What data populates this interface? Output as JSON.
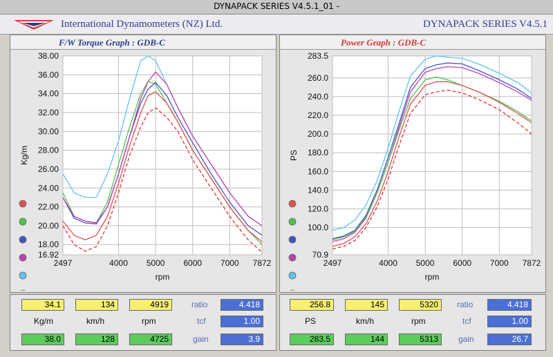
{
  "window": {
    "title": "DYNAPACK SERIES V4.5.1_01  -"
  },
  "header": {
    "company": "International Dynamometers (NZ) Ltd.",
    "series": "DYNAPACK SERIES V4.5.1"
  },
  "colors": {
    "run1": "#e05050",
    "run2": "#4cc44c",
    "run3": "#4452c8",
    "run4": "#c040b0",
    "run5": "#5cc4ee",
    "dashed": "#e03030"
  },
  "chart_data": [
    {
      "type": "line",
      "title": "F/W Torque Graph : GDB-C",
      "xlabel": "rpm",
      "ylabel": "Kg/m",
      "xlim": [
        2497,
        7872
      ],
      "ylim": [
        16.92,
        38.0
      ],
      "x_ticks": [
        "2497",
        "4000",
        "5000",
        "6000",
        "7000",
        "7872"
      ],
      "y_ticks": [
        "38.00",
        "36.00",
        "34.00",
        "32.00",
        "30.00",
        "28.00",
        "26.00",
        "24.00",
        "22.00",
        "20.00",
        "18.00",
        "16.92"
      ],
      "grid": true,
      "series": [
        {
          "color": "#5cc4ee",
          "x": [
            2497,
            2800,
            3100,
            3400,
            3700,
            4000,
            4300,
            4600,
            4800,
            5000,
            5300,
            5600,
            6000,
            6500,
            7000,
            7500,
            7872
          ],
          "y": [
            25.5,
            23.5,
            23.0,
            23.0,
            25.5,
            29.0,
            33.5,
            37.5,
            38.0,
            37.5,
            35.0,
            32.5,
            29.5,
            26.5,
            23.5,
            21.0,
            20.0
          ]
        },
        {
          "color": "#4cc44c",
          "x": [
            2497,
            2800,
            3100,
            3400,
            3700,
            4000,
            4300,
            4600,
            4800,
            5000,
            5300,
            5600,
            6000,
            6500,
            7000,
            7500,
            7872
          ],
          "y": [
            23.5,
            21.0,
            20.5,
            20.3,
            22.5,
            26.5,
            30.5,
            34.0,
            35.3,
            35.0,
            33.0,
            31.0,
            28.0,
            25.0,
            22.0,
            19.5,
            18.0
          ]
        },
        {
          "color": "#4452c8",
          "x": [
            2497,
            2800,
            3100,
            3400,
            3700,
            4000,
            4300,
            4600,
            4800,
            5000,
            5300,
            5600,
            6000,
            6500,
            7000,
            7500,
            7872
          ],
          "y": [
            23.0,
            20.8,
            20.3,
            20.2,
            22.0,
            25.5,
            29.5,
            33.0,
            34.5,
            35.2,
            33.8,
            31.5,
            28.8,
            25.5,
            22.5,
            20.0,
            19.0
          ]
        },
        {
          "color": "#c040b0",
          "x": [
            2497,
            2800,
            3100,
            3400,
            3700,
            4000,
            4300,
            4600,
            4800,
            5000,
            5300,
            5600,
            6000,
            6500,
            7000,
            7500,
            7872
          ],
          "y": [
            23.0,
            21.0,
            20.5,
            20.3,
            22.0,
            25.5,
            29.5,
            33.5,
            35.3,
            36.3,
            35.0,
            32.5,
            29.5,
            26.5,
            23.5,
            21.0,
            20.0
          ]
        },
        {
          "color": "#e05050",
          "x": [
            2497,
            2800,
            3100,
            3400,
            3700,
            4000,
            4300,
            4600,
            4800,
            5000,
            5300,
            5600,
            6000,
            6500,
            7000,
            7500,
            7872
          ],
          "y": [
            20.5,
            19.0,
            18.5,
            19.0,
            21.0,
            24.5,
            28.5,
            32.0,
            33.8,
            34.2,
            33.0,
            31.0,
            28.0,
            25.0,
            22.0,
            19.5,
            18.3
          ]
        },
        {
          "color": "#e03030",
          "dashed": true,
          "x": [
            2497,
            2800,
            3100,
            3400,
            3700,
            4000,
            4300,
            4600,
            4800,
            5000,
            5300,
            5600,
            6000,
            6500,
            7000,
            7500,
            7872
          ],
          "y": [
            20.0,
            18.0,
            17.3,
            17.8,
            20.0,
            23.5,
            27.5,
            30.5,
            32.0,
            32.5,
            31.5,
            30.0,
            27.0,
            24.0,
            21.0,
            18.5,
            17.2
          ]
        }
      ]
    },
    {
      "type": "line",
      "title": "Power Graph : GDB-C",
      "xlabel": "rpm",
      "ylabel": "PS",
      "xlim": [
        2497,
        7872
      ],
      "ylim": [
        70.9,
        283.5
      ],
      "x_ticks": [
        "2497",
        "4000",
        "5000",
        "6000",
        "7000",
        "7872"
      ],
      "y_ticks": [
        "283.5",
        "260.0",
        "240.0",
        "220.0",
        "200.0",
        "180.0",
        "160.0",
        "140.0",
        "120.0",
        "100.0",
        "70.9"
      ],
      "grid": true,
      "series": [
        {
          "color": "#5cc4ee",
          "x": [
            2497,
            2800,
            3100,
            3400,
            3700,
            4000,
            4300,
            4600,
            5000,
            5300,
            5600,
            6000,
            6500,
            7000,
            7500,
            7872
          ],
          "y": [
            97,
            100,
            108,
            124,
            150,
            185,
            225,
            262,
            280,
            283.5,
            282,
            281,
            274,
            265,
            255,
            244
          ]
        },
        {
          "color": "#4452c8",
          "x": [
            2497,
            2800,
            3100,
            3400,
            3700,
            4000,
            4300,
            4600,
            5000,
            5300,
            5600,
            6000,
            6500,
            7000,
            7500,
            7872
          ],
          "y": [
            88,
            91,
            97,
            113,
            140,
            175,
            212,
            250,
            270,
            274,
            276,
            275,
            267,
            258,
            248,
            238
          ]
        },
        {
          "color": "#c040b0",
          "x": [
            2497,
            2800,
            3100,
            3400,
            3700,
            4000,
            4300,
            4600,
            5000,
            5300,
            5600,
            6000,
            6500,
            7000,
            7500,
            7872
          ],
          "y": [
            85,
            88,
            95,
            110,
            137,
            170,
            208,
            245,
            266,
            270,
            272,
            271,
            264,
            255,
            245,
            236
          ]
        },
        {
          "color": "#4cc44c",
          "x": [
            2497,
            2800,
            3100,
            3400,
            3700,
            4000,
            4300,
            4600,
            5000,
            5300,
            5600,
            6000,
            6500,
            7000,
            7500,
            7872
          ],
          "y": [
            87,
            90,
            96,
            111,
            137,
            170,
            205,
            238,
            258,
            261,
            258,
            252,
            244,
            235,
            224,
            214
          ]
        },
        {
          "color": "#e05050",
          "x": [
            2497,
            2800,
            3100,
            3400,
            3700,
            4000,
            4300,
            4600,
            5000,
            5300,
            5600,
            6000,
            6500,
            7000,
            7500,
            7872
          ],
          "y": [
            80,
            83,
            90,
            104,
            128,
            160,
            198,
            232,
            252,
            256,
            256,
            252,
            244,
            234,
            222,
            212
          ]
        },
        {
          "color": "#e03030",
          "dashed": true,
          "x": [
            2497,
            2800,
            3100,
            3400,
            3700,
            4000,
            4300,
            4600,
            5000,
            5300,
            5600,
            6000,
            6500,
            7000,
            7500,
            7872
          ],
          "y": [
            77,
            80,
            86,
            100,
            122,
            152,
            188,
            222,
            242,
            245,
            247,
            244,
            236,
            226,
            212,
            200
          ]
        }
      ]
    }
  ],
  "readouts": {
    "left": {
      "current_value": "34.1",
      "current_speed": "134",
      "current_rpm": "4919",
      "unit_value": "Kg/m",
      "unit_speed": "km/h",
      "unit_rpm": "rpm",
      "max_value": "38.0",
      "max_speed": "128",
      "max_rpm": "4725",
      "ratio_label": "ratio",
      "ratio_value": "4.418",
      "tcf_label": "tcf",
      "tcf_value": "1.00",
      "gain_label": "gain",
      "gain_value": "3.9"
    },
    "right": {
      "current_value": "256.8",
      "current_speed": "145",
      "current_rpm": "5320",
      "unit_value": "PS",
      "unit_speed": "km/h",
      "unit_rpm": "rpm",
      "max_value": "283.5",
      "max_speed": "144",
      "max_rpm": "5313",
      "ratio_label": "ratio",
      "ratio_value": "4.418",
      "tcf_label": "tcf",
      "tcf_value": "1.00",
      "gain_label": "gain",
      "gain_value": "26.7"
    }
  }
}
